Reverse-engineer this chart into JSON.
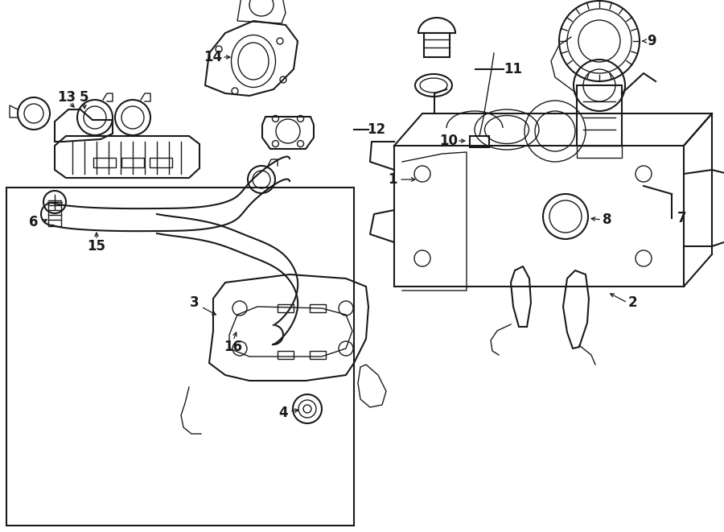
{
  "bg_color": "#ffffff",
  "line_color": "#1a1a1a",
  "lw": 1.0,
  "figsize": [
    9.0,
    6.61
  ],
  "dpi": 100
}
